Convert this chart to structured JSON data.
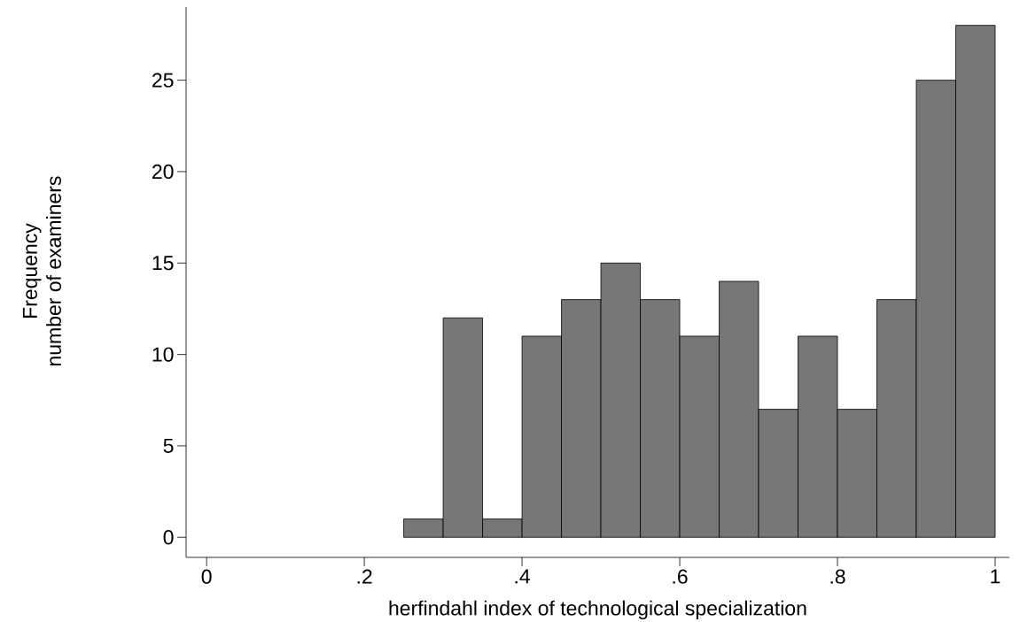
{
  "chart_data": {
    "type": "histogram",
    "xlabel": "herfindahl index of technological specialization",
    "ylabel": [
      "Frequency",
      "number of examiners"
    ],
    "bins": [
      0.25,
      0.3,
      0.35,
      0.4,
      0.45,
      0.5,
      0.55,
      0.6,
      0.65,
      0.7,
      0.75,
      0.8,
      0.85,
      0.9,
      0.95,
      1.0
    ],
    "values": [
      1,
      12,
      1,
      11,
      13,
      15,
      13,
      11,
      14,
      7,
      11,
      7,
      13,
      25,
      28
    ],
    "color": "#777777",
    "xlim": [
      -0.026,
      1.018
    ],
    "ylim": [
      -1.1,
      29
    ],
    "xticks": [
      0,
      {
        "value": 0.2,
        "label": ".2"
      },
      {
        "value": 0.4,
        "label": ".4"
      },
      {
        "value": 0.6,
        "label": ".6"
      },
      {
        "value": 0.8,
        "label": ".8"
      },
      1
    ],
    "yticks": [
      0,
      5,
      10,
      15,
      20,
      25
    ],
    "grid": false
  }
}
